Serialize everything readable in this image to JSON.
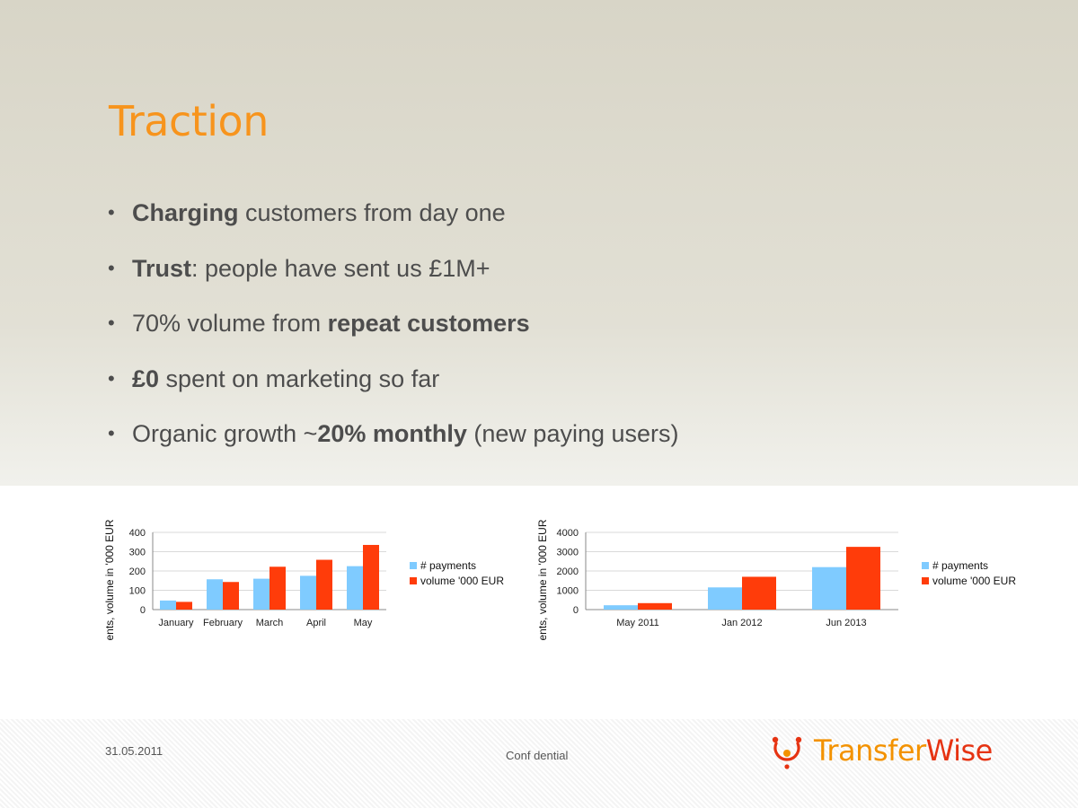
{
  "slide": {
    "title": "Traction",
    "bullets": [
      {
        "pre": "",
        "bold": "Charging",
        "post": " customers from day one"
      },
      {
        "pre": "",
        "bold": "Trust",
        "post": ": people have sent us £1M+"
      },
      {
        "pre": "70% volume from ",
        "bold": "repeat customers",
        "post": ""
      },
      {
        "pre": "",
        "bold": "£0",
        "post": " spent on marketing so far"
      },
      {
        "pre": "Organic growth ~",
        "bold": "20% monthly",
        "post": " (new paying users)"
      }
    ]
  },
  "footer": {
    "date": "31.05.2011",
    "confidential": "Conf dential",
    "logo_part1": "Transfer",
    "logo_part2": "Wise"
  },
  "colors": {
    "title": "#f7941d",
    "payments": "#7fcbff",
    "volume": "#ff3c0a"
  },
  "chart_data": [
    {
      "type": "bar",
      "title": "",
      "xlabel": "",
      "ylabel": "ents, volume in '000 EUR",
      "ylim": [
        0,
        400
      ],
      "yticks": [
        0,
        100,
        200,
        300,
        400
      ],
      "categories": [
        "January",
        "February",
        "March",
        "April",
        "May"
      ],
      "series": [
        {
          "name": "# payments",
          "values": [
            47,
            157,
            160,
            175,
            225
          ]
        },
        {
          "name": "volume '000 EUR",
          "values": [
            40,
            143,
            222,
            258,
            335
          ]
        }
      ],
      "legend": "right",
      "grid": true
    },
    {
      "type": "bar",
      "title": "",
      "xlabel": "",
      "ylabel": "ents, volume in '000 EUR",
      "ylim": [
        0,
        4000
      ],
      "yticks": [
        0,
        1000,
        2000,
        3000,
        4000
      ],
      "categories": [
        "May 2011",
        "Jan 2012",
        "Jun 2013"
      ],
      "series": [
        {
          "name": "# payments",
          "values": [
            225,
            1150,
            2200
          ]
        },
        {
          "name": "volume '000 EUR",
          "values": [
            335,
            1700,
            3250
          ]
        }
      ],
      "legend": "right",
      "grid": true
    }
  ]
}
